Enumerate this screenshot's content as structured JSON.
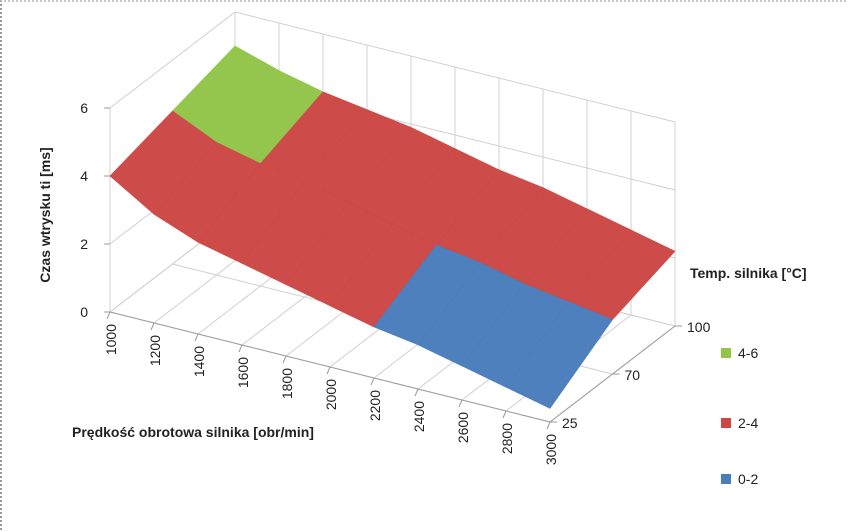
{
  "chart_data": {
    "type": "surface",
    "title": "",
    "ylabel": "Czas wtrysku ti [ms]",
    "xlabel": "Prędkość obrotowa silnika [obr/min]",
    "zlabel": "Temp. silnika [°C]",
    "x": [
      "1000",
      "1200",
      "1400",
      "1600",
      "1800",
      "2000",
      "2200",
      "2400",
      "2600",
      "2800",
      "3000"
    ],
    "z": [
      "25",
      "70",
      "100"
    ],
    "ylim": [
      0,
      6
    ],
    "yticks": [
      "0",
      "2",
      "4",
      "6"
    ],
    "series": [
      {
        "z": "25",
        "values": [
          4.0,
          3.2,
          2.7,
          2.4,
          2.1,
          1.8,
          1.5,
          1.3,
          1.0,
          0.7,
          0.4
        ]
      },
      {
        "z": "70",
        "values": [
          4.5,
          3.9,
          3.6,
          3.4,
          3.1,
          2.8,
          2.5,
          2.3,
          2.0,
          1.8,
          1.6
        ]
      },
      {
        "z": "100",
        "values": [
          5.0,
          4.6,
          4.3,
          4.1,
          3.9,
          3.6,
          3.3,
          3.1,
          2.8,
          2.5,
          2.2
        ]
      }
    ],
    "legend": [
      {
        "label": "4-6",
        "color": "#92c54a",
        "min": 4,
        "max": 6
      },
      {
        "label": "2-4",
        "color": "#cd4845",
        "min": 2,
        "max": 4
      },
      {
        "label": "0-2",
        "color": "#4a7ebb",
        "min": 0,
        "max": 2
      }
    ],
    "legend_position": "right",
    "grid": true
  }
}
